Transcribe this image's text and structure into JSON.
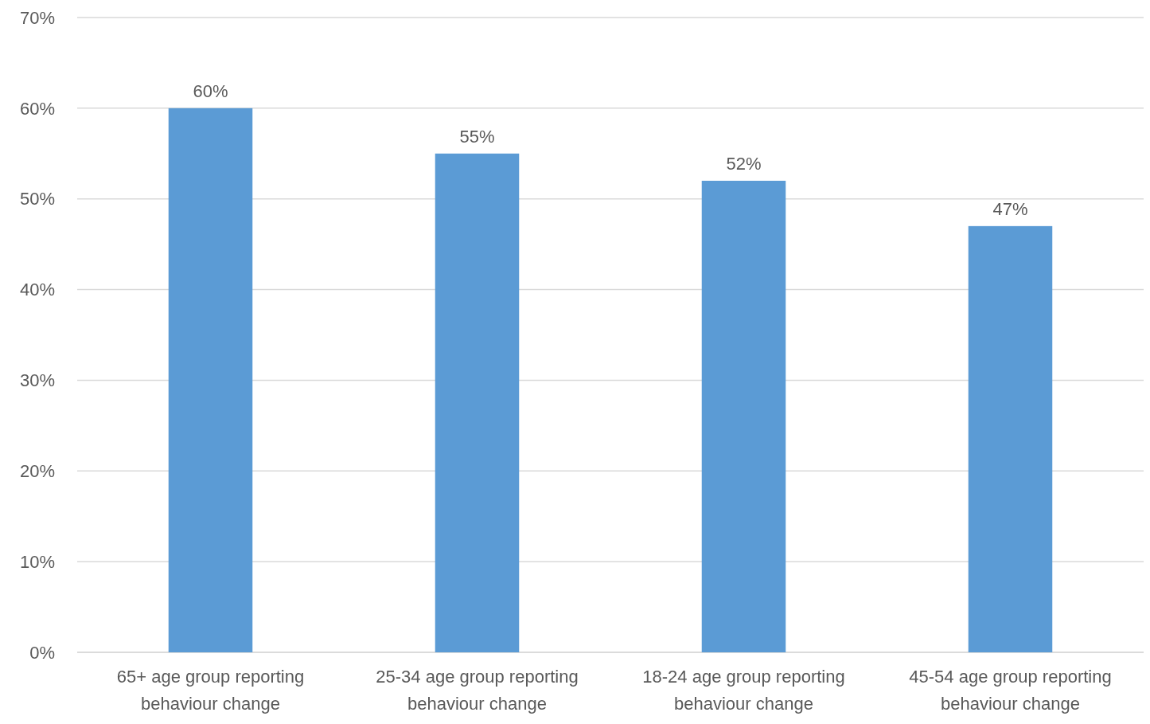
{
  "chart_data": {
    "type": "bar",
    "categories": [
      "65+ age group reporting behaviour change",
      "25-34 age group reporting behaviour change",
      "18-24 age group reporting behaviour change",
      "45-54 age group reporting behaviour change"
    ],
    "values": [
      60,
      55,
      52,
      47
    ],
    "value_labels": [
      "60%",
      "55%",
      "52%",
      "47%"
    ],
    "color": "#5b9bd5",
    "ylim": [
      0,
      70
    ],
    "yticks": [
      {
        "value": 0,
        "label": "0%"
      },
      {
        "value": 10,
        "label": "10%"
      },
      {
        "value": 20,
        "label": "20%"
      },
      {
        "value": 30,
        "label": "30%"
      },
      {
        "value": 40,
        "label": "40%"
      },
      {
        "value": 50,
        "label": "50%"
      },
      {
        "value": 60,
        "label": "60%"
      },
      {
        "value": 70,
        "label": "70%"
      }
    ],
    "grid": "y"
  }
}
